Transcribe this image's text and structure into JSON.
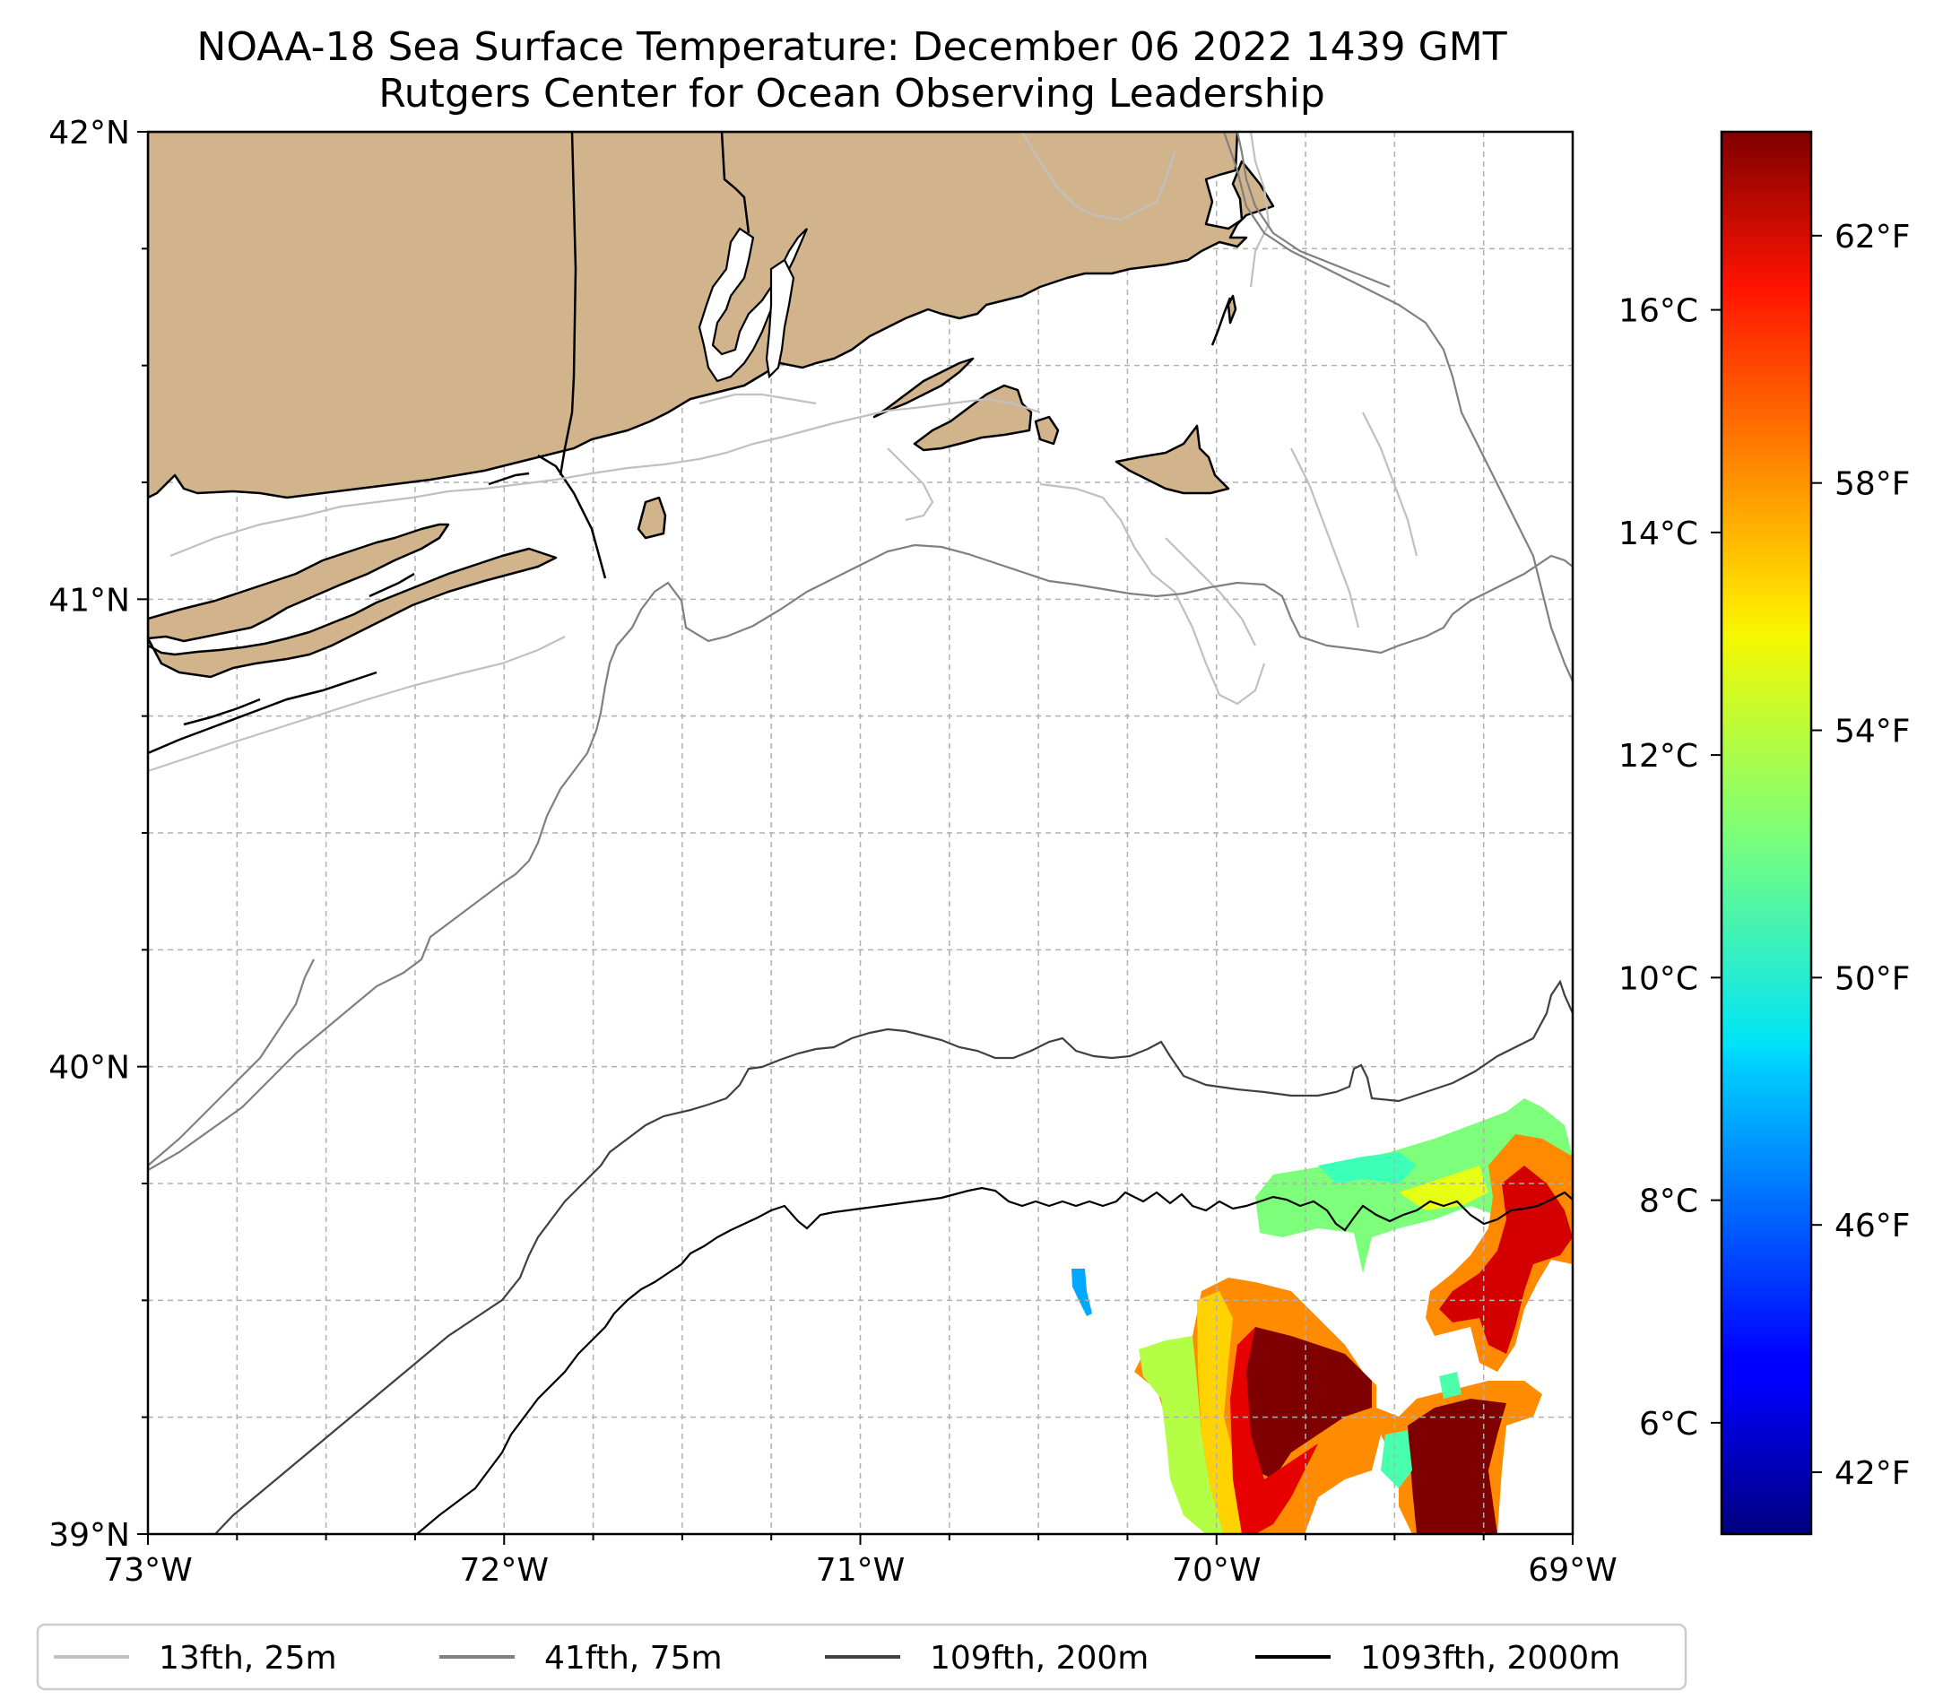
{
  "title": {
    "line1": "NOAA-18 Sea Surface Temperature: December 06 2022 1439 GMT",
    "line2": "Rutgers Center for Ocean Observing Leadership"
  },
  "map": {
    "extent": {
      "lon": [
        -73,
        -69
      ],
      "lat": [
        39,
        42
      ]
    },
    "projection": "PlateCarree",
    "land_color": "#d2b48c",
    "coastline_color": "#000000",
    "grid": true,
    "lon_ticks": [
      {
        "value": -73,
        "label": "73°W"
      },
      {
        "value": -72,
        "label": "72°W"
      },
      {
        "value": -71,
        "label": "71°W"
      },
      {
        "value": -70,
        "label": "70°W"
      },
      {
        "value": -69,
        "label": "69°W"
      }
    ],
    "lat_ticks": [
      {
        "value": 42,
        "label": "42°N"
      },
      {
        "value": 41,
        "label": "41°N"
      },
      {
        "value": 40,
        "label": "40°N"
      },
      {
        "value": 39,
        "label": "39°N"
      }
    ]
  },
  "colorbar": {
    "colormap": "jet",
    "range_celsius": [
      5.0,
      17.6
    ],
    "celsius_ticks": [
      {
        "value": 6,
        "label": "6°C"
      },
      {
        "value": 8,
        "label": "8°C"
      },
      {
        "value": 10,
        "label": "10°C"
      },
      {
        "value": 12,
        "label": "12°C"
      },
      {
        "value": 14,
        "label": "14°C"
      },
      {
        "value": 16,
        "label": "16°C"
      }
    ],
    "fahrenheit_ticks": [
      {
        "value": 42,
        "label": "42°F"
      },
      {
        "value": 46,
        "label": "46°F"
      },
      {
        "value": 50,
        "label": "50°F"
      },
      {
        "value": 54,
        "label": "54°F"
      },
      {
        "value": 58,
        "label": "58°F"
      },
      {
        "value": 62,
        "label": "62°F"
      }
    ]
  },
  "legend": {
    "entries": [
      {
        "label": "13fth, 25m",
        "color": "#c0c0c0"
      },
      {
        "label": "41fth, 75m",
        "color": "#808080"
      },
      {
        "label": "109fth, 200m",
        "color": "#404040"
      },
      {
        "label": "1093fth, 2000m",
        "color": "#000000"
      }
    ]
  }
}
